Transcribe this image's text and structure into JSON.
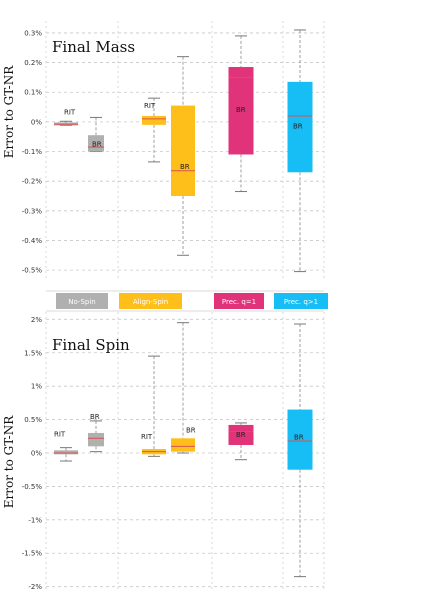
{
  "y_axis_label": "Error to GT-NR",
  "legend": [
    {
      "label": "No-Spin",
      "color": "#b0b0b0"
    },
    {
      "label": "Align-Spin",
      "color": "#ffbf1a"
    },
    {
      "label": "Prec. q=1",
      "color": "#e1337a"
    },
    {
      "label": "Prec. q>1",
      "color": "#17bdf5"
    }
  ],
  "chart_data": [
    {
      "type": "box",
      "title": "Final Mass",
      "ylabel": "Error to GT-NR",
      "yunit": "%",
      "ylim": [
        -0.53,
        0.32
      ],
      "yticks": [
        0.3,
        0.2,
        0.1,
        0,
        -0.1,
        -0.2,
        -0.3,
        -0.4,
        -0.5
      ],
      "ytick_labels": [
        "0.3%",
        "0.2%",
        "0.1%",
        "0%",
        "-0.1%",
        "-0.2%",
        "-0.3%",
        "-0.4%",
        "-0.5%"
      ],
      "grid": true,
      "boxes": [
        {
          "group": "No-Spin",
          "label": "RIT",
          "color": "#b0b0b0",
          "q1": -0.012,
          "median": -0.008,
          "q3": -0.002,
          "whisker_low": -0.012,
          "whisker_high": 0.002
        },
        {
          "group": "No-Spin",
          "label": "BR",
          "color": "#b0b0b0",
          "q1": -0.1,
          "median": -0.085,
          "q3": -0.045,
          "whisker_low": -0.1,
          "whisker_high": 0.015
        },
        {
          "group": "Align-Spin",
          "label": "RIT",
          "color": "#ffbf1a",
          "q1": -0.01,
          "median": 0.01,
          "q3": 0.02,
          "whisker_low": -0.135,
          "whisker_high": 0.08
        },
        {
          "group": "Align-Spin",
          "label": "BR",
          "color": "#ffbf1a",
          "q1": -0.25,
          "median": -0.165,
          "q3": 0.055,
          "whisker_low": -0.45,
          "whisker_high": 0.22
        },
        {
          "group": "Prec. q=1",
          "label": "BR",
          "color": "#e1337a",
          "q1": -0.11,
          "median": 0.15,
          "q3": 0.185,
          "whisker_low": -0.235,
          "whisker_high": 0.29
        },
        {
          "group": "Prec. q>1",
          "label": "BR",
          "color": "#17bdf5",
          "q1": -0.17,
          "median": 0.02,
          "q3": 0.135,
          "whisker_low": -0.505,
          "whisker_high": 0.31
        }
      ]
    },
    {
      "type": "box",
      "title": "Final Spin",
      "ylabel": "Error to GT-NR",
      "yunit": "%",
      "ylim": [
        -2.02,
        2.02
      ],
      "yticks": [
        2,
        1.5,
        1,
        0.5,
        0,
        -0.5,
        -1,
        -1.5,
        -2
      ],
      "ytick_labels": [
        "2%",
        "1.5%",
        "1%",
        "0.5%",
        "0%",
        "-0.5%",
        "-1%",
        "-1.5%",
        "-2%"
      ],
      "grid": true,
      "boxes": [
        {
          "group": "No-Spin",
          "label": "RIT",
          "color": "#b0b0b0",
          "q1": -0.02,
          "median": 0.0,
          "q3": 0.04,
          "whisker_low": -0.12,
          "whisker_high": 0.08
        },
        {
          "group": "No-Spin",
          "label": "BR",
          "color": "#b0b0b0",
          "q1": 0.1,
          "median": 0.22,
          "q3": 0.3,
          "whisker_low": 0.02,
          "whisker_high": 0.48
        },
        {
          "group": "Align-Spin",
          "label": "RIT",
          "color": "#ffbf1a",
          "q1": -0.02,
          "median": 0.02,
          "q3": 0.06,
          "whisker_low": -0.05,
          "whisker_high": 1.45
        },
        {
          "group": "Align-Spin",
          "label": "BR",
          "color": "#ffbf1a",
          "q1": 0.02,
          "median": 0.1,
          "q3": 0.22,
          "whisker_low": 0.0,
          "whisker_high": 1.95
        },
        {
          "group": "Prec. q=1",
          "label": "BR",
          "color": "#e1337a",
          "q1": 0.12,
          "median": 0.32,
          "q3": 0.42,
          "whisker_low": -0.1,
          "whisker_high": 0.45
        },
        {
          "group": "Prec. q>1",
          "label": "BR",
          "color": "#17bdf5",
          "q1": -0.25,
          "median": 0.18,
          "q3": 0.65,
          "whisker_low": -1.85,
          "whisker_high": 1.93
        }
      ]
    }
  ]
}
